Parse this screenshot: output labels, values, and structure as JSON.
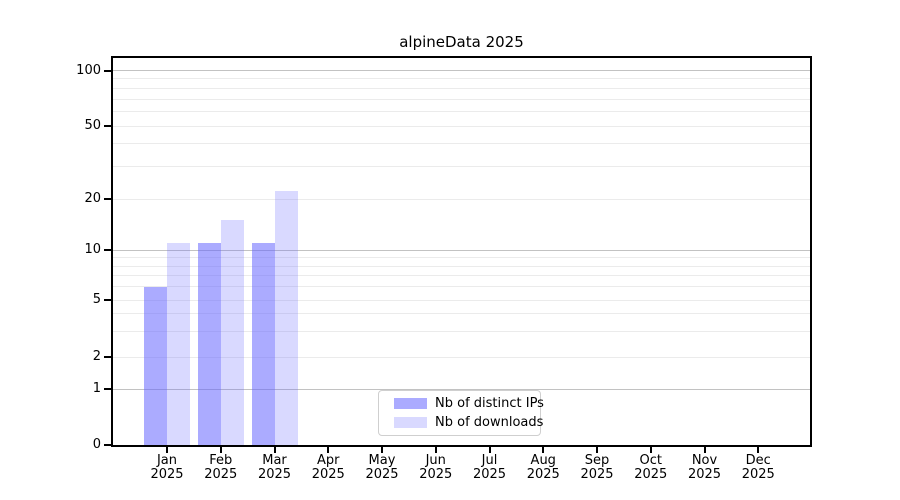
{
  "figure": {
    "title": "alpineData 2025",
    "background": "#ffffff"
  },
  "chart_data": {
    "type": "bar",
    "title": "alpineData 2025",
    "months": [
      "Jan",
      "Feb",
      "Mar",
      "Apr",
      "May",
      "Jun",
      "Jul",
      "Aug",
      "Sep",
      "Oct",
      "Nov",
      "Dec"
    ],
    "year": "2025",
    "series": [
      {
        "name": "Nb of distinct IPs",
        "color": "rgba(102,102,255,0.55)",
        "color_hex_on_white": "#a9a9f9",
        "values": [
          6,
          11,
          11,
          0,
          0,
          0,
          0,
          0,
          0,
          0,
          0,
          0
        ]
      },
      {
        "name": "Nb of downloads",
        "color": "rgba(102,102,255,0.25)",
        "color_hex_on_white": "#dcdcfc",
        "values": [
          11,
          15,
          22,
          0,
          0,
          0,
          0,
          0,
          0,
          0,
          0,
          0
        ]
      }
    ],
    "yscale": "symlog",
    "ylim": [
      0,
      120
    ],
    "y_tick_values": [
      0,
      1,
      2,
      5,
      10,
      20,
      50,
      100
    ],
    "y_major_grid": [
      1,
      10,
      100
    ],
    "y_minor_grid": [
      2,
      3,
      4,
      5,
      6,
      7,
      8,
      9,
      20,
      30,
      40,
      50,
      60,
      70,
      80,
      90
    ],
    "grid": true,
    "legend_position": "lower center",
    "colors": {
      "major_grid": "#c2c2c2",
      "minor_grid": "#ebebeb",
      "spine": "#000000",
      "text": "#000000"
    }
  }
}
